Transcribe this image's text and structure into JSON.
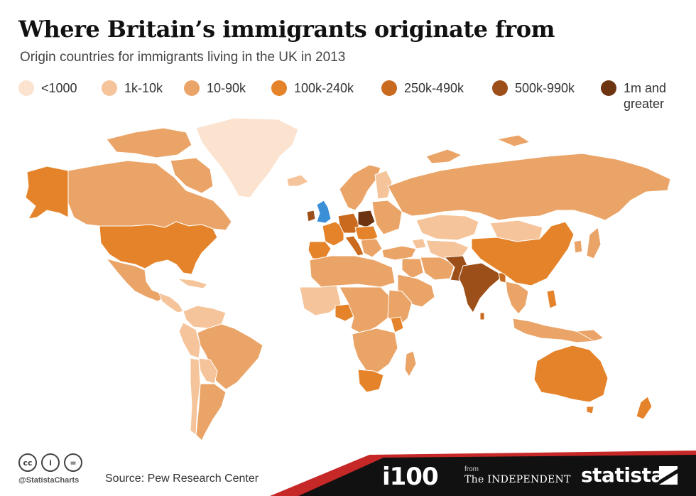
{
  "header": {
    "title": "Where Britain’s immigrants originate from",
    "subtitle": "Origin countries for immigrants living in the UK in 2013"
  },
  "legend": [
    {
      "label": "<1000",
      "color": "#fbe3d0"
    },
    {
      "label": "1k-10k",
      "color": "#f5c49a"
    },
    {
      "label": "10-90k",
      "color": "#eba467"
    },
    {
      "label": "100k-240k",
      "color": "#e5832a"
    },
    {
      "label": "250k-490k",
      "color": "#c96a1f"
    },
    {
      "label": "500k-990k",
      "color": "#9c4f18"
    },
    {
      "label": "1m and greater",
      "color": "#6d3412"
    }
  ],
  "map": {
    "uk_color": "#3a8fd6"
  },
  "footer": {
    "cc_icons": [
      "cc-icon",
      "by-icon",
      "nd-icon"
    ],
    "cc_glyphs": [
      "cc",
      "i",
      "="
    ],
    "handle": "@StatistaCharts",
    "source": "Source: Pew Research Center",
    "brand_i100": "i100",
    "from": "from",
    "independent": "The INDEPENDENT",
    "statista": "statista"
  }
}
